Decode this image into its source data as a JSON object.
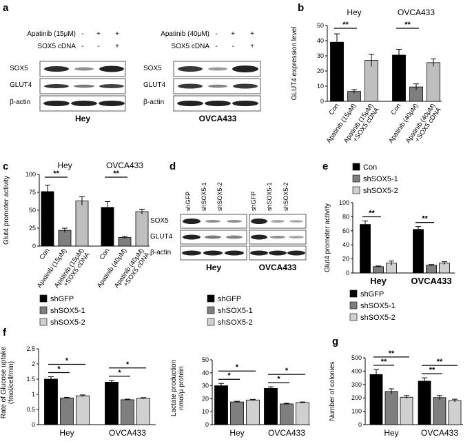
{
  "panels": {
    "a": {
      "letter": "a",
      "hey": {
        "row1_label": "Apatinib (15μM)",
        "row1_marks": [
          "-",
          "+",
          "+"
        ],
        "row2_label": "SOX5 cDNA",
        "row2_marks": [
          "-",
          "-",
          "+"
        ],
        "proteins": [
          "SOX5",
          "GLUT4",
          "β-actin"
        ],
        "cell": "Hey"
      },
      "ovca": {
        "row1_label": "Apatinib (40μM)",
        "row1_marks": [
          "-",
          "+",
          "+"
        ],
        "row2_label": "SOX5 cDNA",
        "row2_marks": [
          "-",
          "-",
          "+"
        ],
        "proteins": [
          "SOX5",
          "GLUT4",
          "β-actin"
        ],
        "cell": "OVCA433"
      }
    },
    "d": {
      "letter": "d",
      "lanes": [
        "shGFP",
        "shSOX5-1",
        "shSOX5-2",
        "shGFP",
        "shSOX5-1",
        "shSOX5-2"
      ],
      "proteins": [
        "SOX5",
        "GLUT4",
        "β-actin"
      ],
      "cells": [
        "Hey",
        "OVCA433"
      ]
    }
  },
  "chart_data": [
    {
      "id": "b",
      "letter": "b",
      "type": "bar",
      "ylabel": "GLUT4 expression level",
      "ylim": [
        0,
        50
      ],
      "yticks": [
        0,
        10,
        20,
        30,
        40,
        50
      ],
      "group_titles": [
        "Hey",
        "OVCA433"
      ],
      "categories": [
        "Con",
        "Apatinib (15μM)",
        "Apatinib (15μM) +SOX5 cDNA",
        "Con",
        "Apatinib (40μM)",
        "Apatinib (40μM) +SOX5 cDNA"
      ],
      "values": [
        39,
        6.5,
        27,
        30.5,
        9.5,
        25.5
      ],
      "errors": [
        5.5,
        1.2,
        4,
        3.8,
        2,
        2.5
      ],
      "colors": [
        "#000000",
        "#7f7f7f",
        "#bfbfbf",
        "#000000",
        "#7f7f7f",
        "#bfbfbf"
      ],
      "significance": [
        {
          "from": 0,
          "to": 1,
          "label": "**"
        },
        {
          "from": 3,
          "to": 4,
          "label": "**"
        }
      ]
    },
    {
      "id": "c",
      "letter": "c",
      "type": "bar",
      "ylabel": "Glut4 promoter activity",
      "ylim": [
        0,
        100
      ],
      "yticks": [
        0,
        25,
        50,
        75,
        100
      ],
      "group_titles": [
        "Hey",
        "OVCA433"
      ],
      "categories": [
        "Con",
        "Apatinib (15μM)",
        "Apatinib (15μM) +SOX5 cDNA",
        "Con",
        "Apatinib (40μM)",
        "Apatinib (40μM) +SOX5 cDNA"
      ],
      "values": [
        76,
        22,
        63,
        54,
        12,
        48
      ],
      "errors": [
        9,
        3,
        6,
        8,
        1.5,
        3.5
      ],
      "colors": [
        "#000000",
        "#7f7f7f",
        "#bfbfbf",
        "#000000",
        "#7f7f7f",
        "#bfbfbf"
      ],
      "significance": [
        {
          "from": 0,
          "to": 1,
          "label": "**"
        },
        {
          "from": 3,
          "to": 4,
          "label": "**"
        }
      ]
    },
    {
      "id": "e",
      "letter": "e",
      "type": "bar",
      "ylabel": "Glut4 promoter activity",
      "ylim": [
        0,
        100
      ],
      "yticks": [
        0,
        20,
        40,
        60,
        80,
        100
      ],
      "categories": [
        "Hey",
        "OVCA433"
      ],
      "legend": [
        "Con",
        "shSOX5-1",
        "shSOX5-2"
      ],
      "series": [
        {
          "name": "Con",
          "values": [
            69,
            62
          ],
          "errors": [
            5,
            4
          ],
          "color": "#000000"
        },
        {
          "name": "shSOX5-1",
          "values": [
            9,
            11
          ],
          "errors": [
            1,
            1
          ],
          "color": "#7f7f7f"
        },
        {
          "name": "shSOX5-2",
          "values": [
            14,
            14
          ],
          "errors": [
            3,
            2
          ],
          "color": "#d0d0d0"
        }
      ],
      "significance": [
        {
          "group": 0,
          "from": 0,
          "to": 1,
          "label": "**"
        },
        {
          "group": 1,
          "from": 0,
          "to": 1,
          "label": "**"
        }
      ]
    },
    {
      "id": "f1",
      "letter": "f",
      "type": "bar",
      "ylabel": "Rate of Glucose uptake (fmol/cell/min)",
      "ylim": [
        0,
        2.5
      ],
      "yticks": [
        0,
        0.5,
        1,
        1.5,
        2,
        2.5
      ],
      "ytick_labels": [
        "0",
        "0.5",
        "1",
        "1.5",
        "2",
        "2.5"
      ],
      "categories": [
        "Hey",
        "OVCA433"
      ],
      "legend": [
        "shGFP",
        "shSOX5-1",
        "shSOX5-2"
      ],
      "series": [
        {
          "name": "shGFP",
          "values": [
            1.5,
            1.4
          ],
          "errors": [
            0.08,
            0.06
          ],
          "color": "#000000"
        },
        {
          "name": "shSOX5-1",
          "values": [
            0.88,
            0.82
          ],
          "errors": [
            0.02,
            0.02
          ],
          "color": "#7f7f7f"
        },
        {
          "name": "shSOX5-2",
          "values": [
            0.95,
            0.87
          ],
          "errors": [
            0.03,
            0.02
          ],
          "color": "#d0d0d0"
        }
      ],
      "significance": [
        {
          "group": 0,
          "from": 0,
          "to": 1,
          "label": "*"
        },
        {
          "group": 0,
          "from": 0,
          "to": 2,
          "label": "*"
        },
        {
          "group": 1,
          "from": 0,
          "to": 1,
          "label": "*"
        },
        {
          "group": 1,
          "from": 0,
          "to": 2,
          "label": "*"
        }
      ]
    },
    {
      "id": "f2",
      "letter": "",
      "type": "bar",
      "ylabel": "Lactate production nmol/μ protein",
      "ylim": [
        0,
        50
      ],
      "yticks": [
        0,
        10,
        20,
        30,
        40,
        50
      ],
      "categories": [
        "Hey",
        "OVCA433"
      ],
      "legend": [
        "shGFP",
        "shSOX5-1",
        "shSOX5-2"
      ],
      "series": [
        {
          "name": "shGFP",
          "values": [
            30,
            28
          ],
          "errors": [
            1.8,
            1.2
          ],
          "color": "#000000"
        },
        {
          "name": "shSOX5-1",
          "values": [
            17.5,
            16
          ],
          "errors": [
            0.5,
            0.5
          ],
          "color": "#7f7f7f"
        },
        {
          "name": "shSOX5-2",
          "values": [
            19,
            17
          ],
          "errors": [
            0.5,
            0.5
          ],
          "color": "#d0d0d0"
        }
      ],
      "significance": [
        {
          "group": 0,
          "from": 0,
          "to": 1,
          "label": "*"
        },
        {
          "group": 0,
          "from": 0,
          "to": 2,
          "label": "*"
        },
        {
          "group": 1,
          "from": 0,
          "to": 1,
          "label": "*"
        },
        {
          "group": 1,
          "from": 0,
          "to": 2,
          "label": "*"
        }
      ]
    },
    {
      "id": "g",
      "letter": "g",
      "type": "bar",
      "ylabel": "Number of colonies",
      "ylim": [
        0,
        500
      ],
      "yticks": [
        0,
        100,
        200,
        300,
        400,
        500
      ],
      "categories": [
        "Hey",
        "OVCA433"
      ],
      "legend": [
        "shGFP",
        "shSOX5-1",
        "shSOX5-2"
      ],
      "series": [
        {
          "name": "shGFP",
          "values": [
            375,
            325
          ],
          "errors": [
            38,
            25
          ],
          "color": "#000000"
        },
        {
          "name": "shSOX5-1",
          "values": [
            248,
            202
          ],
          "errors": [
            20,
            15
          ],
          "color": "#7f7f7f"
        },
        {
          "name": "shSOX5-2",
          "values": [
            205,
            180
          ],
          "errors": [
            12,
            10
          ],
          "color": "#d0d0d0"
        }
      ],
      "significance": [
        {
          "group": 0,
          "from": 0,
          "to": 1,
          "label": "**"
        },
        {
          "group": 0,
          "from": 0,
          "to": 2,
          "label": "**"
        },
        {
          "group": 1,
          "from": 0,
          "to": 1,
          "label": "**"
        },
        {
          "group": 1,
          "from": 0,
          "to": 2,
          "label": "**"
        }
      ]
    }
  ]
}
